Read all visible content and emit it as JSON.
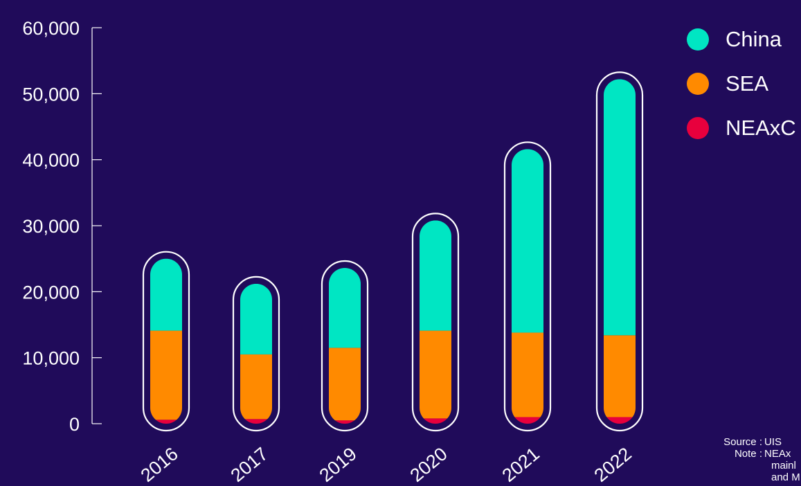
{
  "colors": {
    "background": "#200b5a",
    "china": "#00e6c3",
    "sea": "#ff8a00",
    "neaxc": "#e8003d",
    "outline": "#ffffff"
  },
  "chart_data": {
    "type": "bar",
    "stacked": true,
    "categories": [
      "2016",
      "2017",
      "2019",
      "2020",
      "2021",
      "2022"
    ],
    "series": [
      {
        "name": "NEAxC",
        "color": "#e8003d",
        "values": [
          600,
          700,
          500,
          800,
          1000,
          1000
        ]
      },
      {
        "name": "SEA",
        "color": "#ff8a00",
        "values": [
          13500,
          9800,
          11000,
          13300,
          12800,
          12400
        ]
      },
      {
        "name": "China",
        "color": "#00e6c3",
        "values": [
          10900,
          10700,
          12100,
          16700,
          27800,
          38800
        ]
      }
    ],
    "ylim": [
      0,
      60000
    ],
    "yticks": [
      "0",
      "10,000",
      "20,000",
      "30,000",
      "40,000",
      "50,000",
      "60,000"
    ],
    "legend": [
      "China",
      "SEA",
      "NEAxC"
    ],
    "legend_position": "top-right",
    "grid": false
  },
  "footer": {
    "source_label": "Source :",
    "source_value": "UIS",
    "note_label": "Note :",
    "note_line1": "NEAx",
    "note_line2": "mainl",
    "note_line3": "and M"
  }
}
